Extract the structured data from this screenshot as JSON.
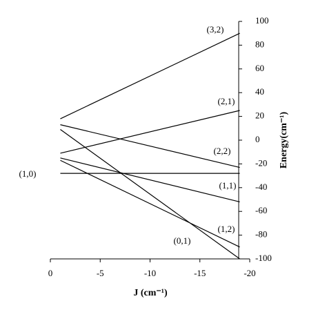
{
  "chart_data": {
    "type": "line",
    "xlabel": "J (cm⁻¹)",
    "ylabel": "Energy(cm⁻¹)",
    "x": [
      -1,
      -19
    ],
    "series": [
      {
        "name": "(3,2)",
        "color": "#000000",
        "values": [
          18,
          90
        ]
      },
      {
        "name": "(2,1)",
        "color": "#000000",
        "values": [
          -11,
          25
        ]
      },
      {
        "name": "(2,2)",
        "color": "#000000",
        "values": [
          13,
          -23
        ]
      },
      {
        "name": "(1,1)",
        "color": "#000000",
        "values": [
          -15,
          -52
        ]
      },
      {
        "name": "(1,0)",
        "color": "#000000",
        "values": [
          -28,
          -28
        ]
      },
      {
        "name": "(1,2)",
        "color": "#000000",
        "values": [
          -17,
          -90
        ]
      },
      {
        "name": "(0,1)",
        "color": "#000000",
        "values": [
          9,
          -100
        ]
      }
    ],
    "xlim": [
      0,
      -20
    ],
    "xticks": [
      0,
      -5,
      -10,
      -15,
      -20
    ],
    "ylim": [
      -100,
      100
    ],
    "yticks": [
      -100,
      -80,
      -60,
      -40,
      -20,
      0,
      20,
      40,
      60,
      80,
      100
    ]
  }
}
